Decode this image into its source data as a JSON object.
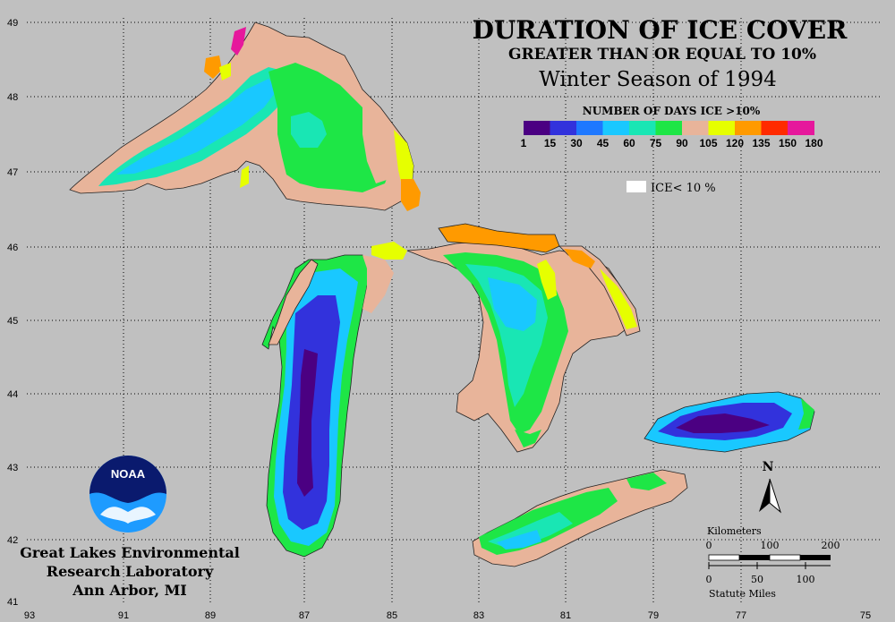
{
  "title": {
    "line1": "DURATION OF ICE COVER",
    "line2": "GREATER THAN OR EQUAL TO 10%",
    "line3": "Winter Season of 1994"
  },
  "legend": {
    "heading": "NUMBER OF DAYS ICE >10%",
    "labels": [
      "1",
      "15",
      "30",
      "45",
      "60",
      "75",
      "90",
      "105",
      "120",
      "135",
      "150",
      "180"
    ],
    "colors": [
      "#4b0082",
      "#3232dc",
      "#1e78ff",
      "#19c8ff",
      "#19e6b4",
      "#1ee646",
      "#e8b49a",
      "#e6ff00",
      "#ff9a00",
      "#ff2a00",
      "#e6189c"
    ],
    "ice_lt_label": "ICE< 10 %",
    "ice_lt_color": "#ffffff"
  },
  "axes": {
    "lat_labels": [
      "49",
      "48",
      "47",
      "46",
      "45",
      "44",
      "43",
      "42",
      "41"
    ],
    "lon_labels": [
      "93",
      "91",
      "89",
      "87",
      "85",
      "83",
      "81",
      "79",
      "77",
      "75"
    ]
  },
  "scale": {
    "km_title": "Kilometers",
    "km_ticks": [
      "0",
      "100",
      "200"
    ],
    "mi_ticks": [
      "0",
      "50",
      "100"
    ],
    "mi_title": "Statute Miles"
  },
  "north_label": "N",
  "logo_text": "NOAA",
  "credit": {
    "line1": "Great Lakes Environmental",
    "line2": "Research Laboratory",
    "line3": "Ann Arbor, MI"
  }
}
